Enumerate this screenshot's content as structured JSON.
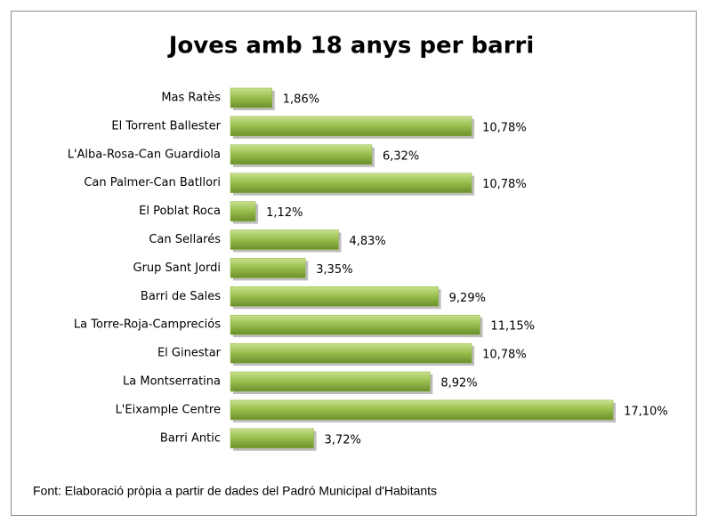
{
  "chart_data": {
    "type": "bar",
    "orientation": "horizontal",
    "title": "Joves amb 18 anys per barri",
    "categories": [
      "Mas Ratès",
      "El Torrent Ballester",
      "L'Alba-Rosa-Can Guardiola",
      "Can Palmer-Can Batllori",
      "El Poblat Roca",
      "Can Sellarés",
      "Grup Sant Jordi",
      "Barri de Sales",
      "La Torre-Roja-Campreciós",
      "El Ginestar",
      "La Montserratina",
      "L'Eixample Centre",
      "Barri Antic"
    ],
    "values": [
      1.86,
      10.78,
      6.32,
      10.78,
      1.12,
      4.83,
      3.35,
      9.29,
      11.15,
      10.78,
      8.92,
      17.1,
      3.72
    ],
    "value_labels": [
      "1,86%",
      "10,78%",
      "6,32%",
      "10,78%",
      "1,12%",
      "4,83%",
      "3,35%",
      "9,29%",
      "11,15%",
      "10,78%",
      "8,92%",
      "17,10%",
      "3,72%"
    ],
    "color": "#8db33e",
    "note": "Font: Elaboració pròpia a partir de dades del Padró Municipal d'Habitants"
  }
}
